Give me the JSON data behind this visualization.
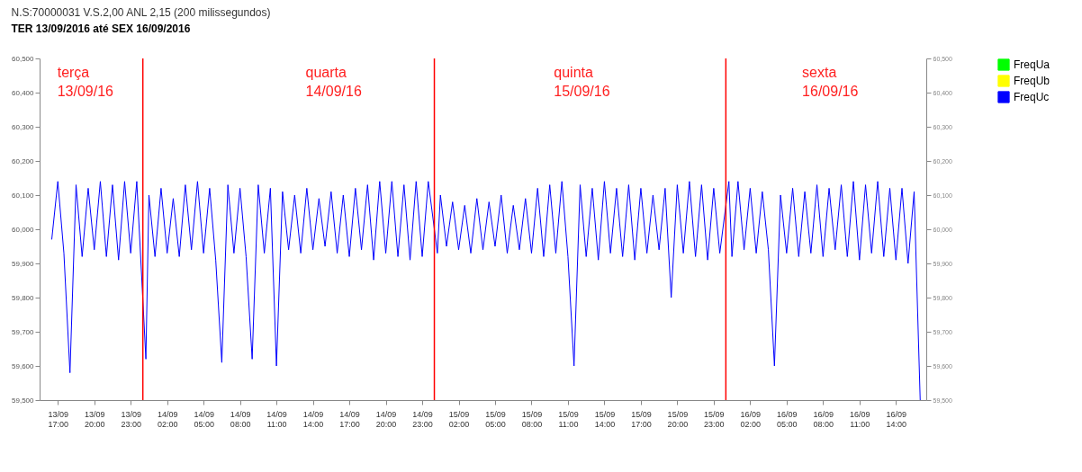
{
  "chart_data": {
    "type": "line",
    "title": "N.S:70000031  V.S.2,00 ANL 2,15 (200 milissegundos)",
    "subtitle": "TER 13/09/2016 até SEX 16/09/2016",
    "x": [
      "2016-09-13T16:30",
      "2016-09-13T17:00",
      "2016-09-13T17:30",
      "2016-09-13T18:00",
      "2016-09-13T18:30",
      "2016-09-13T19:00",
      "2016-09-13T19:30",
      "2016-09-13T20:00",
      "2016-09-13T20:30",
      "2016-09-13T21:00",
      "2016-09-13T21:30",
      "2016-09-13T22:00",
      "2016-09-13T22:30",
      "2016-09-13T23:00",
      "2016-09-13T23:30",
      "2016-09-14T00:15",
      "2016-09-14T00:30",
      "2016-09-14T01:00",
      "2016-09-14T01:30",
      "2016-09-14T02:00",
      "2016-09-14T02:30",
      "2016-09-14T03:00",
      "2016-09-14T03:30",
      "2016-09-14T04:00",
      "2016-09-14T04:30",
      "2016-09-14T05:00",
      "2016-09-14T05:30",
      "2016-09-14T06:00",
      "2016-09-14T06:30",
      "2016-09-14T07:00",
      "2016-09-14T07:30",
      "2016-09-14T08:00",
      "2016-09-14T08:30",
      "2016-09-14T09:00",
      "2016-09-14T09:30",
      "2016-09-14T10:00",
      "2016-09-14T10:30",
      "2016-09-14T11:00",
      "2016-09-14T11:30",
      "2016-09-14T12:00",
      "2016-09-14T12:30",
      "2016-09-14T13:00",
      "2016-09-14T13:30",
      "2016-09-14T14:00",
      "2016-09-14T14:30",
      "2016-09-14T15:00",
      "2016-09-14T15:30",
      "2016-09-14T16:00",
      "2016-09-14T16:30",
      "2016-09-14T17:00",
      "2016-09-14T17:30",
      "2016-09-14T18:00",
      "2016-09-14T18:30",
      "2016-09-14T19:00",
      "2016-09-14T19:30",
      "2016-09-14T20:00",
      "2016-09-14T20:30",
      "2016-09-14T21:00",
      "2016-09-14T21:30",
      "2016-09-14T22:00",
      "2016-09-14T22:30",
      "2016-09-14T23:00",
      "2016-09-14T23:30",
      "2016-09-15T00:15",
      "2016-09-15T00:30",
      "2016-09-15T01:00",
      "2016-09-15T01:30",
      "2016-09-15T02:00",
      "2016-09-15T02:30",
      "2016-09-15T03:00",
      "2016-09-15T03:30",
      "2016-09-15T04:00",
      "2016-09-15T04:30",
      "2016-09-15T05:00",
      "2016-09-15T05:30",
      "2016-09-15T06:00",
      "2016-09-15T06:30",
      "2016-09-15T07:00",
      "2016-09-15T07:30",
      "2016-09-15T08:00",
      "2016-09-15T08:30",
      "2016-09-15T09:00",
      "2016-09-15T09:30",
      "2016-09-15T10:00",
      "2016-09-15T10:30",
      "2016-09-15T11:00",
      "2016-09-15T11:30",
      "2016-09-15T12:00",
      "2016-09-15T12:30",
      "2016-09-15T13:00",
      "2016-09-15T13:30",
      "2016-09-15T14:00",
      "2016-09-15T14:30",
      "2016-09-15T15:00",
      "2016-09-15T15:30",
      "2016-09-15T16:00",
      "2016-09-15T16:30",
      "2016-09-15T17:00",
      "2016-09-15T17:30",
      "2016-09-15T18:00",
      "2016-09-15T18:30",
      "2016-09-15T19:00",
      "2016-09-15T19:30",
      "2016-09-15T20:00",
      "2016-09-15T20:30",
      "2016-09-15T21:00",
      "2016-09-15T21:30",
      "2016-09-15T22:00",
      "2016-09-15T22:30",
      "2016-09-15T23:00",
      "2016-09-15T23:30",
      "2016-09-16T00:15",
      "2016-09-16T00:30",
      "2016-09-16T01:00",
      "2016-09-16T01:30",
      "2016-09-16T02:00",
      "2016-09-16T02:30",
      "2016-09-16T03:00",
      "2016-09-16T03:30",
      "2016-09-16T04:00",
      "2016-09-16T04:30",
      "2016-09-16T05:00",
      "2016-09-16T05:30",
      "2016-09-16T06:00",
      "2016-09-16T06:30",
      "2016-09-16T07:00",
      "2016-09-16T07:30",
      "2016-09-16T08:00",
      "2016-09-16T08:30",
      "2016-09-16T09:00",
      "2016-09-16T09:30",
      "2016-09-16T10:00",
      "2016-09-16T10:30",
      "2016-09-16T11:00",
      "2016-09-16T11:30",
      "2016-09-16T12:00",
      "2016-09-16T12:30",
      "2016-09-16T13:00",
      "2016-09-16T13:30",
      "2016-09-16T14:00",
      "2016-09-16T14:30",
      "2016-09-16T15:00",
      "2016-09-16T15:30",
      "2016-09-16T16:00"
    ],
    "series": [
      {
        "name": "FreqUa",
        "color": "#00ff00",
        "values": [
          null,
          null,
          null,
          null,
          null,
          null,
          null,
          null,
          null,
          null,
          null,
          null,
          null,
          null,
          null,
          null,
          null,
          null,
          null,
          null,
          null,
          null,
          null,
          null,
          null,
          null,
          null,
          null,
          null,
          null,
          null,
          null,
          null,
          null,
          null,
          null,
          null,
          null,
          null,
          null,
          null,
          null,
          null,
          null,
          null,
          null,
          null,
          null,
          null,
          null,
          null,
          null,
          null,
          null,
          null,
          null,
          null,
          null,
          null,
          null,
          null,
          null,
          null,
          null,
          null,
          null,
          null,
          null,
          null,
          null,
          null,
          null,
          null,
          null,
          null,
          null,
          null,
          null,
          null,
          null,
          null,
          null,
          null,
          null,
          null,
          null,
          null,
          null,
          null,
          null,
          null,
          null,
          null,
          null,
          null,
          null,
          null,
          null,
          null,
          null,
          null,
          null,
          null,
          null,
          null,
          null,
          null,
          null,
          null,
          null,
          null,
          null,
          null,
          null,
          null,
          null,
          null,
          null,
          null,
          null,
          null,
          null,
          null,
          null,
          null,
          null,
          null,
          null,
          null,
          null,
          null,
          null,
          null,
          null,
          null,
          null,
          null,
          null,
          null,
          null,
          null,
          null,
          null,
          null
        ]
      },
      {
        "name": "FreqUb",
        "color": "#ffff00",
        "values": [
          null,
          null,
          null,
          null,
          null,
          null,
          null,
          null,
          null,
          null,
          null,
          null,
          null,
          null,
          null,
          null,
          null,
          null,
          null,
          null,
          null,
          null,
          null,
          null,
          null,
          null,
          null,
          null,
          null,
          null,
          null,
          null,
          null,
          null,
          null,
          null,
          null,
          null,
          null,
          null,
          null,
          null,
          null,
          null,
          null,
          null,
          null,
          null,
          null,
          null,
          null,
          null,
          null,
          null,
          null,
          null,
          null,
          null,
          null,
          null,
          null,
          null,
          null,
          null,
          null,
          null,
          null,
          null,
          null,
          null,
          null,
          null,
          null,
          null,
          null,
          null,
          null,
          null,
          null,
          null,
          null,
          null,
          null,
          null,
          null,
          null,
          null,
          null,
          null,
          null,
          null,
          null,
          null,
          null,
          null,
          null,
          null,
          null,
          null,
          null,
          null,
          null,
          null,
          null,
          null,
          null,
          null,
          null,
          null,
          null,
          null,
          null,
          null,
          null,
          null,
          null,
          null,
          null,
          null,
          null,
          null,
          null,
          null,
          null,
          null,
          null,
          null,
          null,
          null,
          null,
          null,
          null,
          null,
          null,
          null,
          null,
          null,
          null,
          null,
          null,
          null,
          null,
          null,
          null
        ]
      },
      {
        "name": "FreqUc",
        "color": "#0000ff",
        "values": [
          59970,
          60140,
          59930,
          59580,
          60130,
          59920,
          60120,
          59940,
          60140,
          59920,
          60130,
          59910,
          60140,
          59930,
          60140,
          59620,
          60100,
          59920,
          60120,
          59930,
          60090,
          59920,
          60130,
          59940,
          60140,
          59930,
          60120,
          59910,
          59610,
          60130,
          59930,
          60120,
          59920,
          59620,
          60130,
          59930,
          60120,
          59600,
          60110,
          59940,
          60100,
          59930,
          60120,
          59940,
          60090,
          59950,
          60110,
          59930,
          60100,
          59920,
          60120,
          59940,
          60130,
          59910,
          60140,
          59930,
          60140,
          59920,
          60130,
          59910,
          60140,
          59920,
          60140,
          59930,
          60100,
          59950,
          60080,
          59940,
          60070,
          59930,
          60090,
          59940,
          60080,
          59950,
          60100,
          59930,
          60070,
          59940,
          60090,
          59930,
          60120,
          59920,
          60130,
          59930,
          60140,
          59920,
          59600,
          60130,
          59920,
          60120,
          59910,
          60140,
          59930,
          60120,
          59920,
          60130,
          59910,
          60120,
          59930,
          60100,
          59940,
          60120,
          59800,
          60130,
          59930,
          60140,
          59920,
          60130,
          59910,
          60120,
          59930,
          60140,
          59920,
          60140,
          59940,
          60120,
          59930,
          60110,
          59940,
          59600,
          60100,
          59930,
          60120,
          59920,
          60110,
          59930,
          60130,
          59920,
          60120,
          59940,
          60130,
          59920,
          60140,
          59910,
          60130,
          59930,
          60140,
          59920,
          60120,
          59910,
          60120,
          59900,
          60110,
          59500
        ]
      }
    ],
    "xlim": [
      "2016-09-13T15:30",
      "2016-09-16T16:30"
    ],
    "xticks": [
      {
        "value": "2016-09-13T17:00",
        "label": "13/09\n17:00"
      },
      {
        "value": "2016-09-13T20:00",
        "label": "13/09\n20:00"
      },
      {
        "value": "2016-09-13T23:00",
        "label": "13/09\n23:00"
      },
      {
        "value": "2016-09-14T02:00",
        "label": "14/09\n02:00"
      },
      {
        "value": "2016-09-14T05:00",
        "label": "14/09\n05:00"
      },
      {
        "value": "2016-09-14T08:00",
        "label": "14/09\n08:00"
      },
      {
        "value": "2016-09-14T11:00",
        "label": "14/09\n11:00"
      },
      {
        "value": "2016-09-14T14:00",
        "label": "14/09\n14:00"
      },
      {
        "value": "2016-09-14T17:00",
        "label": "14/09\n17:00"
      },
      {
        "value": "2016-09-14T20:00",
        "label": "14/09\n20:00"
      },
      {
        "value": "2016-09-14T23:00",
        "label": "14/09\n23:00"
      },
      {
        "value": "2016-09-15T02:00",
        "label": "15/09\n02:00"
      },
      {
        "value": "2016-09-15T05:00",
        "label": "15/09\n05:00"
      },
      {
        "value": "2016-09-15T08:00",
        "label": "15/09\n08:00"
      },
      {
        "value": "2016-09-15T11:00",
        "label": "15/09\n11:00"
      },
      {
        "value": "2016-09-15T14:00",
        "label": "15/09\n14:00"
      },
      {
        "value": "2016-09-15T17:00",
        "label": "15/09\n17:00"
      },
      {
        "value": "2016-09-15T20:00",
        "label": "15/09\n20:00"
      },
      {
        "value": "2016-09-15T23:00",
        "label": "15/09\n23:00"
      },
      {
        "value": "2016-09-16T02:00",
        "label": "16/09\n02:00"
      },
      {
        "value": "2016-09-16T05:00",
        "label": "16/09\n05:00"
      },
      {
        "value": "2016-09-16T08:00",
        "label": "16/09\n08:00"
      },
      {
        "value": "2016-09-16T11:00",
        "label": "16/09\n11:00"
      },
      {
        "value": "2016-09-16T14:00",
        "label": "16/09\n14:00"
      }
    ],
    "ylim": [
      59500,
      60500
    ],
    "yticks": [
      {
        "value": 59500,
        "label": "59,500"
      },
      {
        "value": 59600,
        "label": "59,600"
      },
      {
        "value": 59700,
        "label": "59,700"
      },
      {
        "value": 59800,
        "label": "59,800"
      },
      {
        "value": 59900,
        "label": "59,900"
      },
      {
        "value": 60000,
        "label": "60,000"
      },
      {
        "value": 60100,
        "label": "60,100"
      },
      {
        "value": 60200,
        "label": "60,200"
      },
      {
        "value": 60300,
        "label": "60,300"
      },
      {
        "value": 60400,
        "label": "60,400"
      },
      {
        "value": 60500,
        "label": "60,500"
      }
    ],
    "y2lim": [
      59500,
      60500
    ],
    "y2ticks": [
      {
        "value": 59500,
        "label": "59,500"
      },
      {
        "value": 59600,
        "label": "59,600"
      },
      {
        "value": 59700,
        "label": "59,700"
      },
      {
        "value": 59800,
        "label": "59,800"
      },
      {
        "value": 59900,
        "label": "59,900"
      },
      {
        "value": 60000,
        "label": "60,000"
      },
      {
        "value": 60100,
        "label": "60,100"
      },
      {
        "value": 60200,
        "label": "60,200"
      },
      {
        "value": 60300,
        "label": "60,300"
      },
      {
        "value": 60400,
        "label": "60,400"
      },
      {
        "value": 60500,
        "label": "60,500"
      }
    ],
    "ref_lines": [
      {
        "axis": "x",
        "value": "2016-09-14T00:00",
        "color": "#ff0000"
      },
      {
        "axis": "x",
        "value": "2016-09-15T00:00",
        "color": "#ff0000"
      },
      {
        "axis": "x",
        "value": "2016-09-16T00:00",
        "color": "#ff0000"
      }
    ],
    "annotations": [
      "terça\n13/09/16",
      "quarta\n14/09/16",
      "quinta\n15/09/16",
      "sexta\n16/09/16"
    ],
    "legend": "top right"
  }
}
